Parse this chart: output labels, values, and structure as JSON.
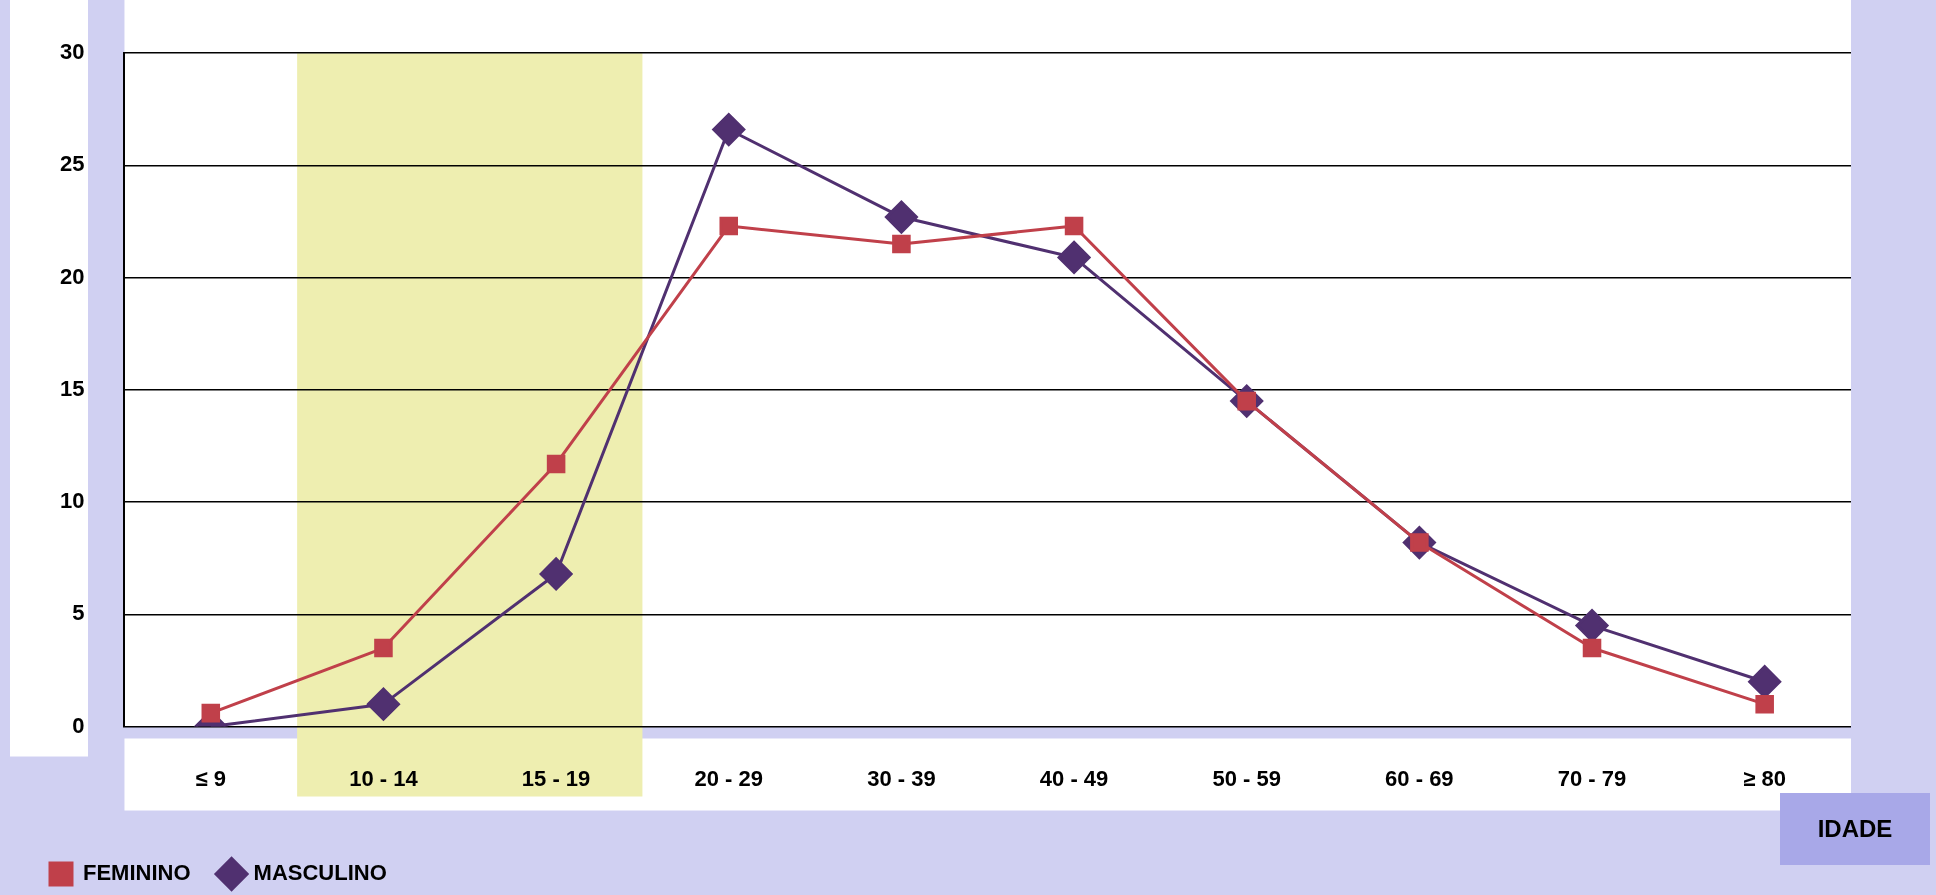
{
  "chart_data": {
    "type": "line",
    "xlabel": "IDADE",
    "categories": [
      "≤ 9",
      "10 - 14",
      "15 - 19",
      "20 - 29",
      "30 - 39",
      "40 - 49",
      "50 - 59",
      "60 - 69",
      "70 - 79",
      "≥ 80"
    ],
    "series": [
      {
        "name": "FEMININO",
        "color": "#c0404a",
        "marker": "square",
        "values": [
          0.6,
          3.5,
          11.7,
          22.3,
          21.5,
          22.3,
          14.5,
          8.2,
          3.5,
          1.0
        ]
      },
      {
        "name": "MASCULINO",
        "color": "#503070",
        "marker": "diamond",
        "values": [
          0,
          1.0,
          6.8,
          26.6,
          22.7,
          20.9,
          14.5,
          8.2,
          4.5,
          2.0
        ]
      }
    ],
    "ylim": [
      0,
      30
    ],
    "yticks": [
      0,
      5,
      10,
      15,
      20,
      25,
      30
    ],
    "grid": "y",
    "legend": "bottom left",
    "bands": [
      {
        "axis": "x",
        "from": "10 - 14",
        "to": "15 - 19",
        "color": "#eeeeb0"
      }
    ]
  }
}
